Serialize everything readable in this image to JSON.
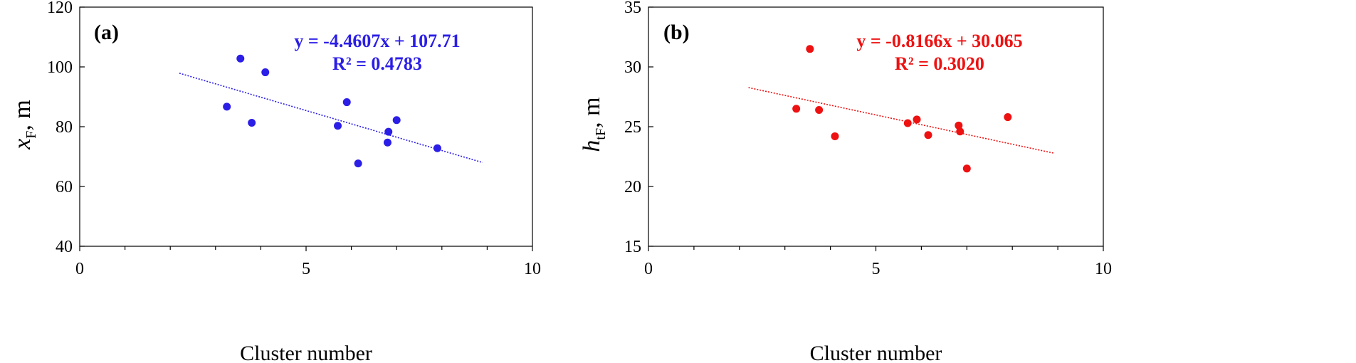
{
  "chart_data": [
    {
      "type": "scatter",
      "panel_label": "(a)",
      "xlabel": "Cluster number",
      "ylabel": {
        "main": "x",
        "sub": "F",
        "unit": ", m"
      },
      "xlim": [
        0,
        10
      ],
      "ylim": [
        40,
        120
      ],
      "xticks": [
        0,
        5,
        10
      ],
      "yticks": [
        40,
        60,
        80,
        100,
        120
      ],
      "color": "#2b1ee6",
      "points": [
        [
          3.25,
          86.7
        ],
        [
          3.55,
          102.8
        ],
        [
          3.8,
          81.3
        ],
        [
          4.1,
          98.2
        ],
        [
          5.7,
          80.3
        ],
        [
          5.9,
          88.2
        ],
        [
          6.15,
          67.7
        ],
        [
          6.8,
          74.7
        ],
        [
          6.82,
          78.3
        ],
        [
          7.0,
          82.2
        ],
        [
          7.9,
          72.8
        ]
      ],
      "trendline": {
        "slope": -4.4607,
        "intercept": 107.71,
        "x_range": [
          2.2,
          8.9
        ]
      },
      "equation": "y = -4.4607x + 107.71",
      "r2": "R² = 0.4783"
    },
    {
      "type": "scatter",
      "panel_label": "(b)",
      "xlabel": "Cluster number",
      "ylabel": {
        "main": "h",
        "sub": "tF",
        "unit": ", m"
      },
      "xlim": [
        0,
        10
      ],
      "ylim": [
        15,
        35
      ],
      "xticks": [
        0,
        5,
        10
      ],
      "yticks": [
        15,
        20,
        25,
        30,
        35
      ],
      "color": "#ee1111",
      "points": [
        [
          3.25,
          26.5
        ],
        [
          3.55,
          31.5
        ],
        [
          3.75,
          26.4
        ],
        [
          4.1,
          24.2
        ],
        [
          5.7,
          25.3
        ],
        [
          5.9,
          25.6
        ],
        [
          6.15,
          24.3
        ],
        [
          6.82,
          25.1
        ],
        [
          6.85,
          24.6
        ],
        [
          7.0,
          21.5
        ],
        [
          7.9,
          25.8
        ]
      ],
      "trendline": {
        "slope": -0.8166,
        "intercept": 30.065,
        "x_range": [
          2.2,
          8.9
        ]
      },
      "equation": "y = -0.8166x + 30.065",
      "r2": "R² = 0.3020"
    }
  ]
}
